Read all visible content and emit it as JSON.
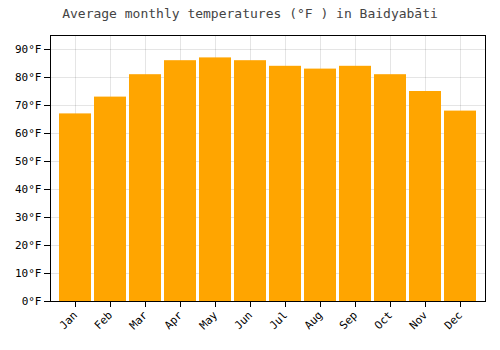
{
  "chart_data": {
    "type": "bar",
    "title": "Average monthly temperatures (°F ) in Baidyabāti",
    "categories": [
      "Jan",
      "Feb",
      "Mar",
      "Apr",
      "May",
      "Jun",
      "Jul",
      "Aug",
      "Sep",
      "Oct",
      "Nov",
      "Dec"
    ],
    "values": [
      67,
      73,
      81,
      86,
      87,
      86,
      84,
      83,
      84,
      81,
      75,
      68
    ],
    "color": "#FFA500",
    "ylim": [
      0,
      95
    ],
    "yticks": [
      {
        "value": 0,
        "label": "0°F"
      },
      {
        "value": 10,
        "label": "10°F"
      },
      {
        "value": 20,
        "label": "20°F"
      },
      {
        "value": 30,
        "label": "30°F"
      },
      {
        "value": 40,
        "label": "40°F"
      },
      {
        "value": 50,
        "label": "50°F"
      },
      {
        "value": 60,
        "label": "60°F"
      },
      {
        "value": 70,
        "label": "70°F"
      },
      {
        "value": 80,
        "label": "80°F"
      },
      {
        "value": 90,
        "label": "90°F"
      }
    ],
    "grid": true
  }
}
